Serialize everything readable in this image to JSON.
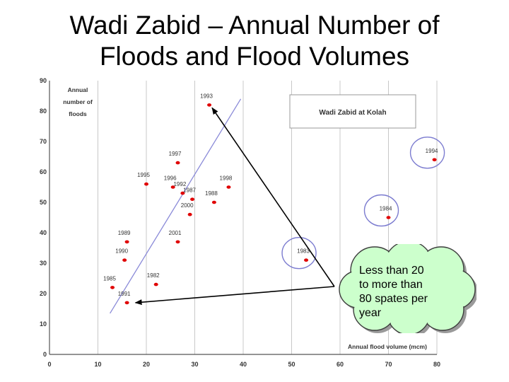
{
  "slide": {
    "title_line1": "Wadi Zabid – Annual Number of",
    "title_line2": "Floods and Flood Volumes"
  },
  "callout": {
    "text": "Less than 20\nto more than\n80 spates per\nyear"
  },
  "colors": {
    "points": "#e00000",
    "trend": "#8a8ad8",
    "outlier_circle": "#7c7cd0",
    "grid": "#c8c8c8",
    "axis": "#555555",
    "callout_fill": "#ccffcc",
    "callout_stroke": "#3d3d3d"
  },
  "chart_data": {
    "type": "scatter",
    "title": "Wadi Zabid at Kolah",
    "xlabel": "Annual flood volume (mcm)",
    "ylabel_lines": [
      "Annual",
      "number of",
      "floods"
    ],
    "xlim": [
      0,
      80
    ],
    "ylim": [
      0,
      90
    ],
    "xticks": [
      0,
      10,
      20,
      30,
      40,
      50,
      60,
      70,
      80
    ],
    "yticks": [
      0,
      10,
      20,
      30,
      40,
      50,
      60,
      70,
      80,
      90
    ],
    "grid": true,
    "points": [
      {
        "label": "1993",
        "x": 33,
        "y": 82
      },
      {
        "label": "1997",
        "x": 26.5,
        "y": 63
      },
      {
        "label": "1995",
        "x": 20,
        "y": 56
      },
      {
        "label": "1996",
        "x": 25.5,
        "y": 55
      },
      {
        "label": "1992",
        "x": 27.5,
        "y": 53
      },
      {
        "label": "1998",
        "x": 37,
        "y": 55
      },
      {
        "label": "1987",
        "x": 29.5,
        "y": 51
      },
      {
        "label": "1988",
        "x": 34,
        "y": 50
      },
      {
        "label": "2000",
        "x": 29,
        "y": 46
      },
      {
        "label": "1989",
        "x": 16,
        "y": 37
      },
      {
        "label": "2001",
        "x": 26.5,
        "y": 37
      },
      {
        "label": "1990",
        "x": 15.5,
        "y": 31
      },
      {
        "label": "1983",
        "x": 53,
        "y": 31
      },
      {
        "label": "1984",
        "x": 70,
        "y": 45
      },
      {
        "label": "1994",
        "x": 79.5,
        "y": 64
      },
      {
        "label": "1982",
        "x": 22,
        "y": 23
      },
      {
        "label": "1985",
        "x": 13,
        "y": 22
      },
      {
        "label": "1991",
        "x": 16,
        "y": 17
      }
    ],
    "trend_line": [
      {
        "x": 12.5,
        "y": 13.5
      },
      {
        "x": 39.5,
        "y": 84
      }
    ],
    "circled_points": [
      "1983",
      "1984",
      "1994"
    ]
  }
}
